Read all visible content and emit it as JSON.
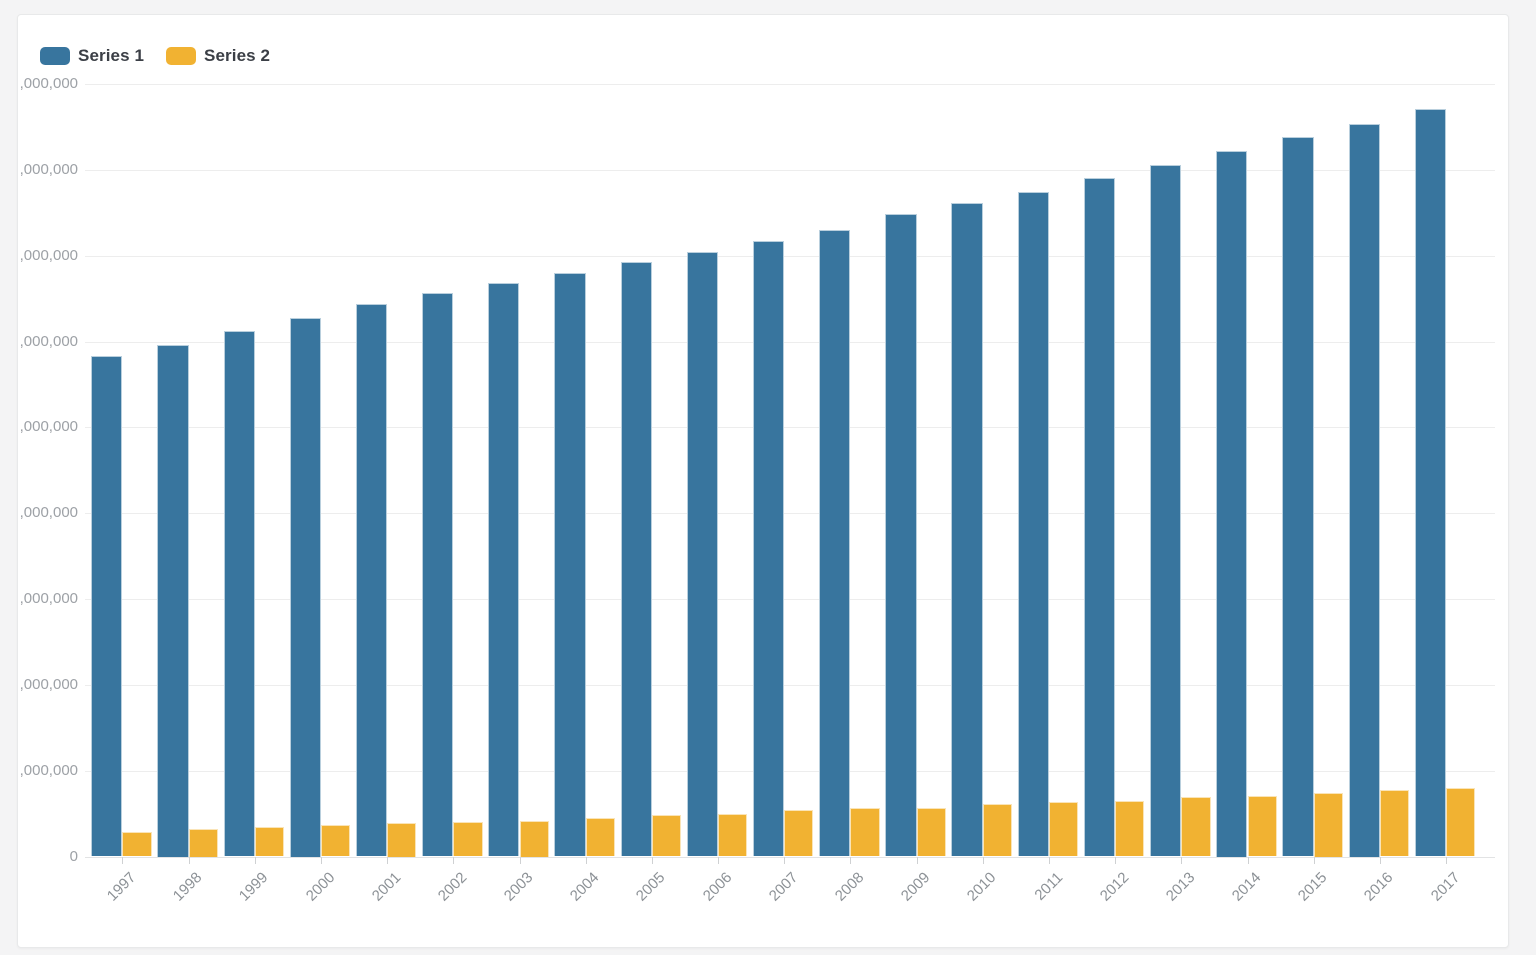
{
  "page": {
    "background_color": "#f4f4f5",
    "card_background_color": "#ffffff"
  },
  "legend": {
    "items": [
      {
        "label": "Series 1",
        "color": "#38759e"
      },
      {
        "label": "Series 2",
        "color": "#f1b232"
      }
    ]
  },
  "y_axis": {
    "tick_labels_top_to_bottom": [
      ",000,000",
      ",000,000",
      ",000,000",
      ",000,000",
      ",000,000",
      ",000,000",
      ",000,000",
      ",000,000",
      ",000,000",
      "0"
    ],
    "label_color": "#9da1a6"
  },
  "chart_data": {
    "type": "bar",
    "categories": [
      "1997",
      "1998",
      "1999",
      "2000",
      "2001",
      "2002",
      "2003",
      "2004",
      "2005",
      "2006",
      "2007",
      "2008",
      "2009",
      "2010",
      "2011",
      "2012",
      "2013",
      "2014",
      "2015",
      "2016",
      "2017"
    ],
    "series": [
      {
        "name": "Series 1",
        "color": "#38759e",
        "values": [
          58300000,
          59600000,
          61200000,
          62800000,
          64400000,
          65700000,
          66800000,
          68000000,
          69300000,
          70400000,
          71700000,
          73000000,
          74900000,
          76100000,
          77400000,
          79100000,
          80600000,
          82200000,
          83800000,
          85400000,
          87100000
        ]
      },
      {
        "name": "Series 2",
        "color": "#f1b232",
        "values": [
          2900000,
          3200000,
          3400000,
          3700000,
          3900000,
          4000000,
          4200000,
          4500000,
          4800000,
          5000000,
          5400000,
          5600000,
          5700000,
          6100000,
          6300000,
          6500000,
          6900000,
          7100000,
          7400000,
          7800000,
          8000000
        ]
      }
    ],
    "ylim": [
      0,
      90000000
    ],
    "ytick_interval": 10000000,
    "ytick_labels_visible_truncated": true,
    "xlabel": "",
    "ylabel": "",
    "grid": true,
    "legend_position": "top-left"
  }
}
